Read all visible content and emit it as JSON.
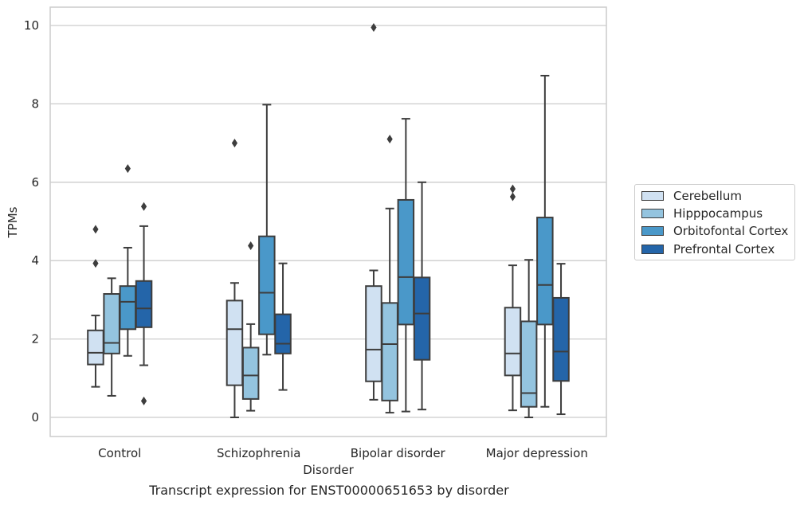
{
  "chart_data": {
    "type": "box",
    "title": "",
    "caption": "Transcript expression for ENST00000651653 by disorder",
    "xlabel": "Disorder",
    "ylabel": "TPMs",
    "ylim": [
      -0.45,
      10.45
    ],
    "yticks": [
      0,
      2,
      4,
      6,
      8,
      10
    ],
    "grid": "horizontal",
    "legend_position": "right",
    "categories": [
      "Control",
      "Schizophrenia",
      "Bipolar disorder",
      "Major depression"
    ],
    "series": [
      {
        "name": "Cerebellum",
        "color": "#d0e1f2",
        "boxes": [
          {
            "whislo": 0.78,
            "q1": 1.35,
            "med": 1.65,
            "q3": 2.22,
            "whishi": 2.6,
            "fliers": [
              3.93,
              4.8
            ]
          },
          {
            "whislo": 0.0,
            "q1": 0.82,
            "med": 2.25,
            "q3": 2.98,
            "whishi": 3.43,
            "fliers": [
              7.0
            ]
          },
          {
            "whislo": 0.45,
            "q1": 0.92,
            "med": 1.73,
            "q3": 3.35,
            "whishi": 3.75,
            "fliers": [
              9.95
            ]
          },
          {
            "whislo": 0.18,
            "q1": 1.07,
            "med": 1.63,
            "q3": 2.8,
            "whishi": 3.88,
            "fliers": [
              5.63,
              5.83
            ]
          }
        ]
      },
      {
        "name": "Hipppocampus",
        "color": "#94c4df",
        "boxes": [
          {
            "whislo": 0.55,
            "q1": 1.63,
            "med": 1.9,
            "q3": 3.15,
            "whishi": 3.55,
            "fliers": []
          },
          {
            "whislo": 0.17,
            "q1": 0.47,
            "med": 1.07,
            "q3": 1.78,
            "whishi": 2.38,
            "fliers": [
              4.38
            ]
          },
          {
            "whislo": 0.12,
            "q1": 0.43,
            "med": 1.87,
            "q3": 2.92,
            "whishi": 5.33,
            "fliers": [
              7.1
            ]
          },
          {
            "whislo": 0.0,
            "q1": 0.27,
            "med": 0.62,
            "q3": 2.45,
            "whishi": 4.02,
            "fliers": []
          }
        ]
      },
      {
        "name": "Orbitofontal Cortex",
        "color": "#4a98c9",
        "boxes": [
          {
            "whislo": 1.57,
            "q1": 2.25,
            "med": 2.95,
            "q3": 3.35,
            "whishi": 4.33,
            "fliers": [
              6.35
            ]
          },
          {
            "whislo": 1.6,
            "q1": 2.12,
            "med": 3.18,
            "q3": 4.62,
            "whishi": 7.98,
            "fliers": []
          },
          {
            "whislo": 0.15,
            "q1": 2.37,
            "med": 3.58,
            "q3": 5.55,
            "whishi": 7.62,
            "fliers": []
          },
          {
            "whislo": 0.27,
            "q1": 2.37,
            "med": 3.38,
            "q3": 5.1,
            "whishi": 8.72,
            "fliers": []
          }
        ]
      },
      {
        "name": "Prefrontal Cortex",
        "color": "#2465a9",
        "boxes": [
          {
            "whislo": 1.33,
            "q1": 2.3,
            "med": 2.78,
            "q3": 3.48,
            "whishi": 4.88,
            "fliers": [
              0.42,
              5.38
            ]
          },
          {
            "whislo": 0.7,
            "q1": 1.63,
            "med": 1.88,
            "q3": 2.63,
            "whishi": 3.93,
            "fliers": []
          },
          {
            "whislo": 0.2,
            "q1": 1.47,
            "med": 2.65,
            "q3": 3.57,
            "whishi": 6.0,
            "fliers": []
          },
          {
            "whislo": 0.08,
            "q1": 0.93,
            "med": 1.68,
            "q3": 3.05,
            "whishi": 3.92,
            "fliers": []
          }
        ]
      }
    ]
  }
}
